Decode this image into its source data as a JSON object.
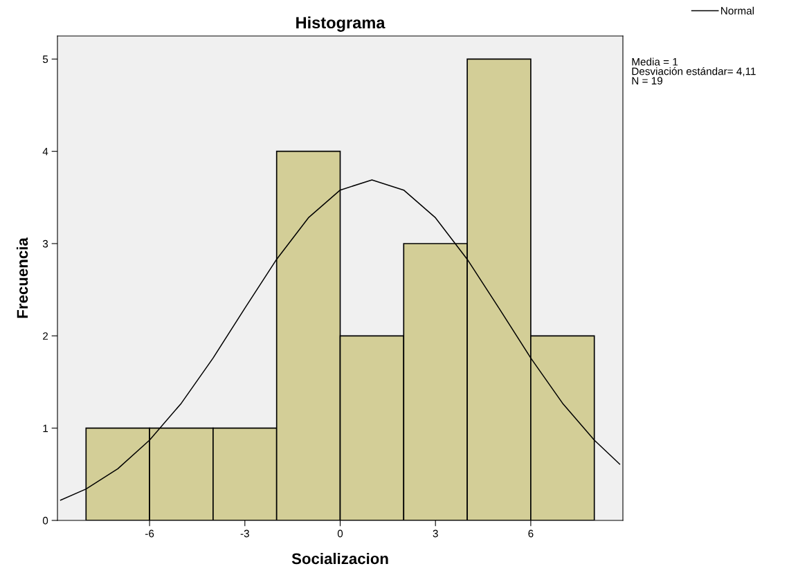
{
  "chart_data": {
    "type": "histogram",
    "title": "Histograma",
    "xlabel": "Socializacion",
    "ylabel": "Frecuencia",
    "bins": [
      -8,
      -6,
      -4,
      -2,
      0,
      2,
      4,
      6,
      8
    ],
    "values": [
      1,
      1,
      1,
      4,
      2,
      3,
      5,
      2
    ],
    "color": "#d3ce97",
    "series": [
      {
        "name": "Normal",
        "type": "line",
        "color": "#000000",
        "x": [
          -8.8,
          -8,
          -7,
          -6,
          -5,
          -4,
          -3,
          -2,
          -1,
          0,
          1,
          2,
          3,
          4,
          5,
          6,
          7,
          8,
          8.8
        ],
        "values": [
          0.22,
          0.34,
          0.56,
          0.87,
          1.27,
          1.76,
          2.3,
          2.83,
          3.28,
          3.58,
          3.69,
          3.58,
          3.28,
          2.83,
          2.3,
          1.76,
          1.27,
          0.87,
          0.61
        ]
      }
    ],
    "xlim": [
      -8.9,
      8.9
    ],
    "xticks": [
      -6,
      -3,
      0,
      3,
      6
    ],
    "ylim": [
      0,
      5.25
    ],
    "yticks": [
      0,
      1,
      2,
      3,
      4,
      5
    ],
    "legend": "top right",
    "grid": false,
    "annotations": [
      "Media = 1\nDesviación estándar= 4,11\nN = 19"
    ]
  }
}
